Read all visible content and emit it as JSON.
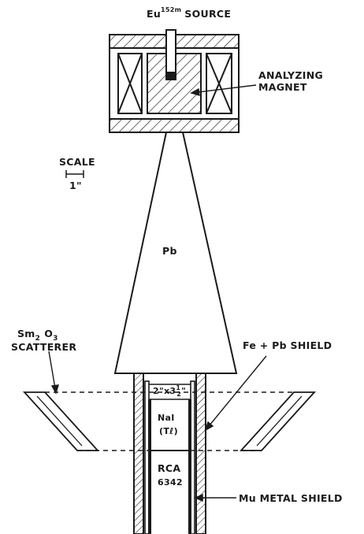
{
  "labels": {
    "source_element": "Eu",
    "source_isotope": "152m",
    "source_word": "SOURCE",
    "analyzing_1": "ANALYZING",
    "analyzing_2": "MAGNET",
    "scale_word": "SCALE",
    "scale_value": "1\"",
    "pb": "Pb",
    "scatterer_sm": "Sm",
    "scatterer_sm_sub": "2",
    "scatterer_o": "O",
    "scatterer_o_sub": "3",
    "scatterer_word": "SCATTERER",
    "fe_pb_shield": "Fe + Pb SHIELD",
    "crystal_size": "2\"x3",
    "crystal_num": "1",
    "crystal_den": "2",
    "crystal_inch": "\"",
    "nai_1": "NaI",
    "nai_2": "(Tℓ)",
    "rca_1": "RCA",
    "rca_2": "6342",
    "mu_shield": "Mu METAL SHIELD"
  },
  "colors": {
    "ink": "#1a1a1a",
    "paper": "#ffffff"
  }
}
